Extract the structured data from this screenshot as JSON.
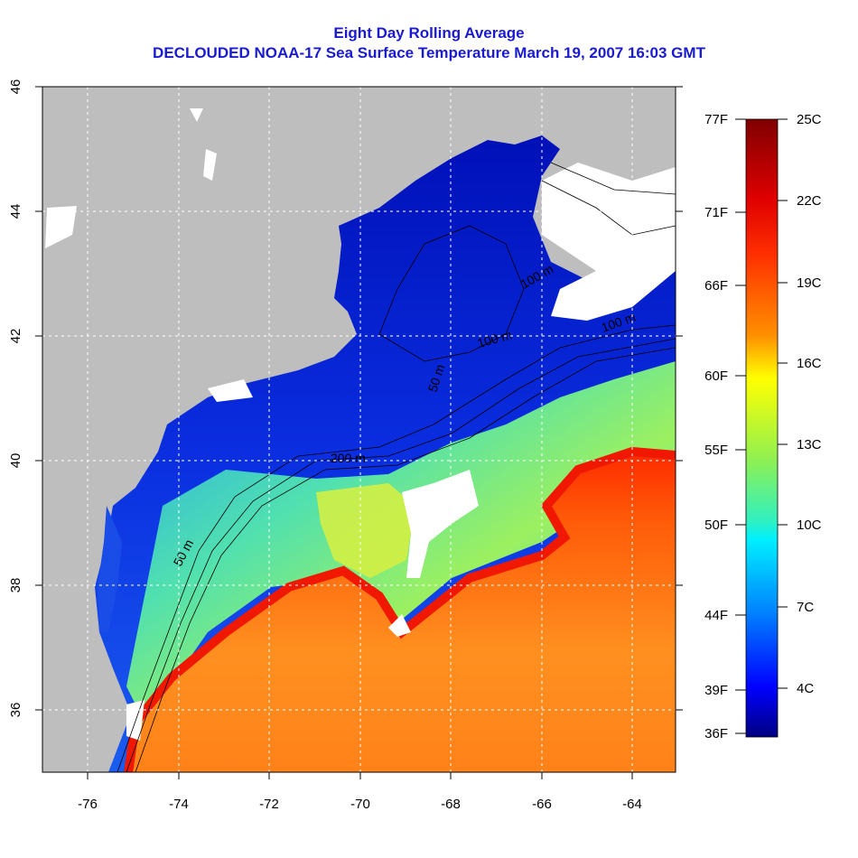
{
  "title": {
    "line1": "Eight Day Rolling Average",
    "line2": "DECLOUDED NOAA-17 Sea Surface Temperature March 19, 2007 16:03 GMT"
  },
  "map": {
    "lon_range": [
      -77,
      -63
    ],
    "lat_range": [
      35,
      46
    ],
    "x_ticks": [
      "-76",
      "-74",
      "-72",
      "-70",
      "-68",
      "-66",
      "-64"
    ],
    "y_ticks": [
      "36",
      "38",
      "40",
      "42",
      "44",
      "46"
    ],
    "contour_labels": [
      "50 m",
      "200 m",
      "50 m",
      "100 m",
      "100 m",
      "100 m"
    ],
    "colors": {
      "land": "#bebebe",
      "cloud": "#ffffff",
      "cold": "#0a1ed8",
      "warm": "#ff7a10"
    }
  },
  "colorbar": {
    "range_c": [
      2.2,
      25
    ],
    "celsius_ticks": [
      "25C",
      "22C",
      "19C",
      "16C",
      "13C",
      "10C",
      "7C",
      "4C"
    ],
    "fahrenheit_ticks": [
      "77F",
      "71F",
      "66F",
      "60F",
      "55F",
      "50F",
      "44F",
      "39F",
      "36F"
    ]
  }
}
